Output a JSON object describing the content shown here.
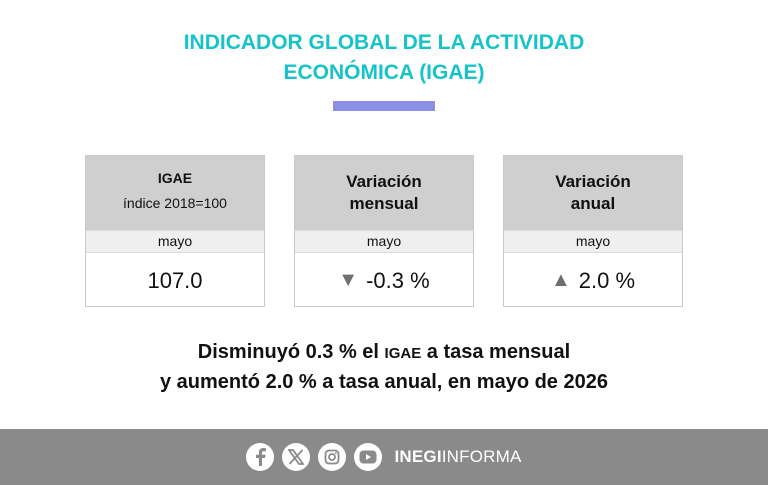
{
  "header": {
    "title_line1": "INDICADOR GLOBAL DE LA ACTIVIDAD",
    "title_line2": "ECONÓMICA (IGAE)"
  },
  "cards": [
    {
      "title": "IGAE",
      "subtitle": "índice 2018=100",
      "period": "mayo",
      "value": "107.0"
    },
    {
      "title_line1": "Variación",
      "title_line2": "mensual",
      "period": "mayo",
      "direction": "down",
      "value": "-0.3 %"
    },
    {
      "title_line1": "Variación",
      "title_line2": "anual",
      "period": "mayo",
      "direction": "up",
      "value": "2.0 %"
    }
  ],
  "summary": {
    "line1_a": "Disminuyó 0.3 % el",
    "line1_abbr": "IGAE",
    "line1_b": "a tasa mensual",
    "line2": "y aumentó 2.0 % a tasa anual, en mayo de 2026"
  },
  "footer": {
    "icons": [
      "facebook-icon",
      "x-icon",
      "instagram-icon",
      "youtube-icon"
    ],
    "brand_bold": "INEGI",
    "brand_light": "INFORMA"
  },
  "colors": {
    "title": "#17c3c9",
    "accent_bar": "#8b8fe6",
    "card_header": "#cfcfcf",
    "footer": "#8a8a8a"
  }
}
